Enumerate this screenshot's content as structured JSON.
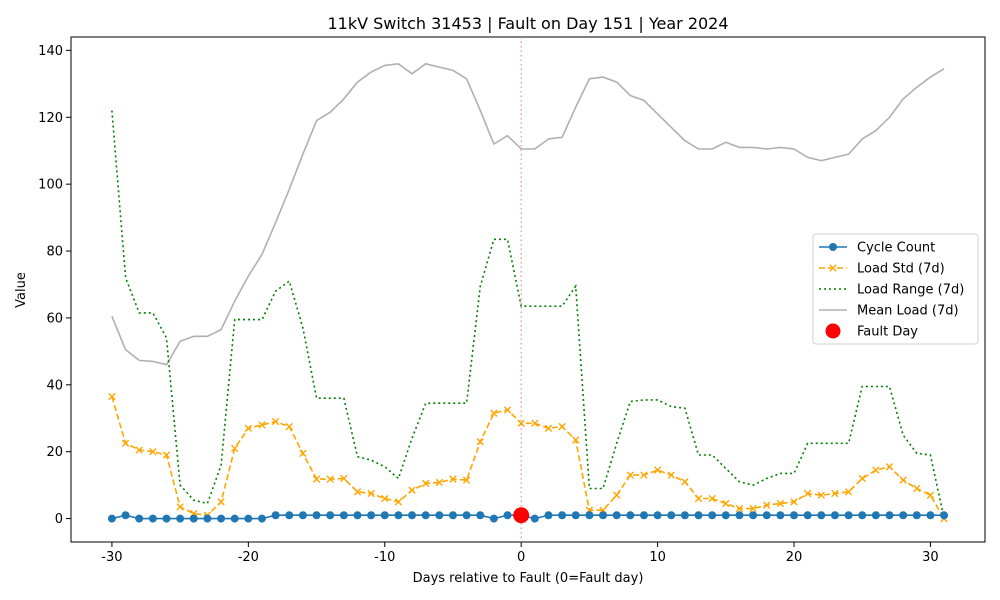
{
  "chart_data": {
    "type": "line",
    "title": "11kV Switch 31453 | Fault on Day 151 | Year 2024",
    "xlabel": "Days relative to Fault (0=Fault day)",
    "ylabel": "Value",
    "xlim": [
      -33,
      34
    ],
    "ylim": [
      -7,
      144
    ],
    "xticks": [
      -30,
      -20,
      -10,
      0,
      10,
      20,
      30
    ],
    "yticks": [
      0,
      20,
      40,
      60,
      80,
      100,
      120,
      140
    ],
    "grid": false,
    "legend_position": "center-right",
    "x": [
      -30,
      -29,
      -28,
      -27,
      -26,
      -25,
      -24,
      -23,
      -22,
      -21,
      -20,
      -19,
      -18,
      -17,
      -16,
      -15,
      -14,
      -13,
      -12,
      -11,
      -10,
      -9,
      -8,
      -7,
      -6,
      -5,
      -4,
      -3,
      -2,
      -1,
      0,
      1,
      2,
      3,
      4,
      5,
      6,
      7,
      8,
      9,
      10,
      11,
      12,
      13,
      14,
      15,
      16,
      17,
      18,
      19,
      20,
      21,
      22,
      23,
      24,
      25,
      26,
      27,
      28,
      29,
      30,
      31
    ],
    "series": [
      {
        "name": "Cycle Count",
        "color": "#1f77b4",
        "style": "solid-circle",
        "values": [
          0,
          1,
          0,
          0,
          0,
          0,
          0,
          0,
          0,
          0,
          0,
          0,
          1,
          1,
          1,
          1,
          1,
          1,
          1,
          1,
          1,
          1,
          1,
          1,
          1,
          1,
          1,
          1,
          0,
          1,
          1,
          0,
          1,
          1,
          1,
          1,
          1,
          1,
          1,
          1,
          1,
          1,
          1,
          1,
          1,
          1,
          1,
          1,
          1,
          1,
          1,
          1,
          1,
          1,
          1,
          1,
          1,
          1,
          1,
          1,
          1,
          1
        ]
      },
      {
        "name": "Load Std (7d)",
        "color": "#ffa500",
        "style": "dashed-x",
        "values": [
          36.5,
          22.5,
          20.5,
          20,
          19,
          3.5,
          1.5,
          1,
          5,
          21,
          27,
          28,
          29,
          27.5,
          19.5,
          11.8,
          11.8,
          12,
          8,
          7.5,
          6,
          5,
          8.5,
          10.5,
          10.8,
          11.8,
          11.5,
          23,
          31.5,
          32.5,
          28.5,
          28.5,
          27,
          27.5,
          23.5,
          2.5,
          2.5,
          7,
          13,
          13,
          14.5,
          13,
          11,
          6,
          6,
          4.5,
          3,
          3,
          4,
          4.5,
          5,
          7.5,
          7,
          7.5,
          8,
          12,
          14.5,
          15.5,
          11.5,
          9,
          7,
          0
        ]
      },
      {
        "name": "Load Range (7d)",
        "color": "#008000",
        "style": "dotted",
        "values": [
          122,
          72,
          61.5,
          61.5,
          54,
          10,
          5.5,
          4.5,
          16,
          59.5,
          59.5,
          59.5,
          68,
          71,
          57,
          36,
          36,
          36,
          18.5,
          17.5,
          15.5,
          12,
          24,
          34.5,
          34.5,
          34.5,
          34.5,
          69.5,
          83.5,
          83.5,
          63.5,
          63.5,
          63.5,
          63.5,
          69.5,
          9,
          9,
          22.5,
          35,
          35.5,
          35.5,
          33.5,
          33,
          19,
          19,
          15,
          11,
          10,
          12,
          13.5,
          13.5,
          22.5,
          22.5,
          22.5,
          22.5,
          39.5,
          39.5,
          39.5,
          25,
          19.5,
          19,
          0
        ]
      },
      {
        "name": "Mean Load (7d)",
        "color": "#b0b0b0",
        "style": "solid",
        "values": [
          60.5,
          50.5,
          47.3,
          47,
          46,
          53,
          54.5,
          54.5,
          56.5,
          65,
          72.5,
          79,
          88.5,
          98.5,
          109,
          119,
          121.5,
          125.5,
          130.5,
          133.5,
          135.5,
          136,
          133,
          136,
          135,
          134,
          131.5,
          122,
          112,
          114.5,
          110.5,
          110.5,
          113.5,
          114,
          123,
          131.5,
          132,
          130.5,
          126.5,
          125,
          121,
          117,
          113,
          110.5,
          110.5,
          112.5,
          111,
          111,
          110.5,
          111,
          110.5,
          108,
          107,
          108,
          109,
          113.5,
          116,
          120,
          125.5,
          129,
          132,
          134.5
        ]
      }
    ],
    "markers": [
      {
        "name": "Fault Day",
        "x": 0,
        "y": 1,
        "color": "#ff0000"
      }
    ],
    "vline": {
      "x": 0,
      "color": "#f08080",
      "style": "dotted"
    }
  }
}
